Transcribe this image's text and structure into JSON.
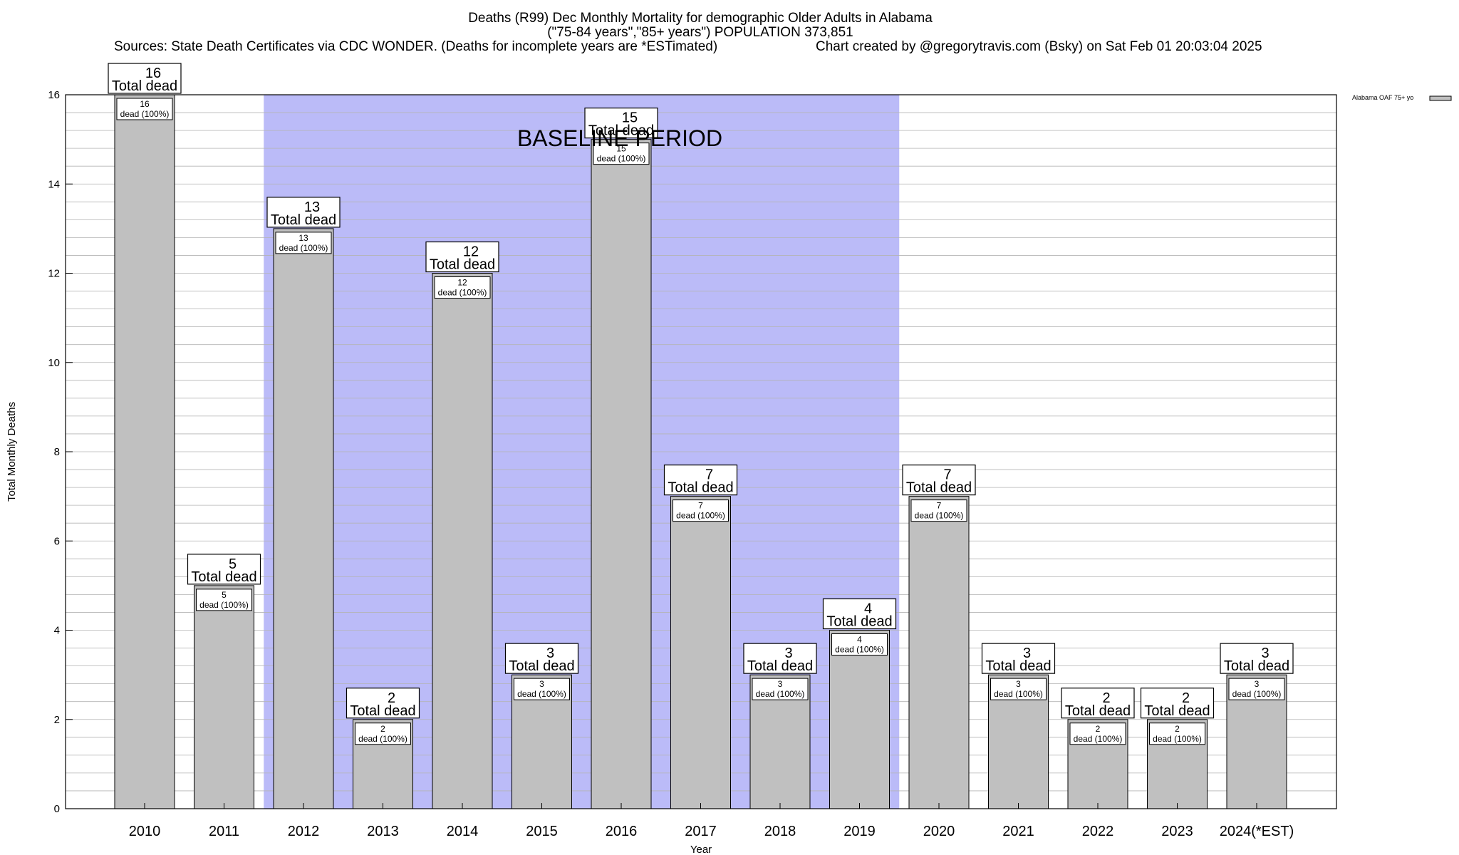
{
  "header": {
    "title_line1": "Deaths (R99) Dec Monthly Mortality for demographic Older Adults in Alabama",
    "title_line2": "(\"75-84 years\",\"85+ years\") POPULATION 373,851",
    "sources": "Sources: State Death Certificates via CDC WONDER. (Deaths for incomplete years are *ESTimated)",
    "credit": "Chart created by @gregorytravis.com (Bsky) on Sat Feb 01 20:03:04 2025"
  },
  "legend": {
    "label": "Alabama OAF 75+ yo"
  },
  "annotations": {
    "baseline": "BASELINE PERIOD",
    "total_suffix": "Total dead",
    "dead_suffix": "dead (100%)"
  },
  "colors": {
    "bar": "#c0c0c0",
    "baseline": "#bbbbf8",
    "grid": "#b4b4b4"
  },
  "chart_data": {
    "type": "bar",
    "title": "Deaths (R99) Dec Monthly Mortality for demographic Older Adults in Alabama",
    "xlabel": "Year",
    "ylabel": "Total Monthly Deaths",
    "ylim": [
      0,
      16
    ],
    "yticks": [
      0,
      2,
      4,
      6,
      8,
      10,
      12,
      14,
      16
    ],
    "categories": [
      "2010",
      "2011",
      "2012",
      "2013",
      "2014",
      "2015",
      "2016",
      "2017",
      "2018",
      "2019",
      "2020",
      "2021",
      "2022",
      "2023",
      "2024(*EST)"
    ],
    "series": [
      {
        "name": "Alabama OAF 75+ yo",
        "values": [
          16,
          5,
          13,
          2,
          12,
          3,
          15,
          7,
          3,
          4,
          7,
          3,
          2,
          2,
          3
        ]
      }
    ],
    "baseline_period": [
      "2012",
      "2019"
    ]
  }
}
